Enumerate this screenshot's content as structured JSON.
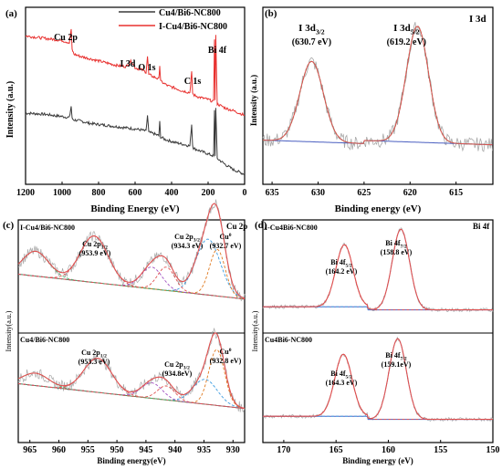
{
  "chart_data": [
    {
      "type": "line",
      "panel_label": "(a)",
      "xlabel": "Binding Energy (eV)",
      "ylabel": "Intensity (a.u.)",
      "xlim": [
        1200,
        0
      ],
      "x_reversed": true,
      "x_ticks": [
        "1200",
        "1000",
        "800",
        "600",
        "400",
        "200",
        "0"
      ],
      "legend_position": "top-right",
      "series": [
        {
          "name": "Cu4/Bi6-NC800",
          "color": "#3a3a3a",
          "x": [
            1200,
            1100,
            1000,
            960,
            950,
            945,
            935,
            900,
            850,
            800,
            750,
            700,
            650,
            600,
            560,
            540,
            532,
            525,
            500,
            470,
            465,
            460,
            440,
            420,
            380,
            350,
            300,
            290,
            285,
            280,
            250,
            200,
            170,
            165,
            162,
            158,
            150,
            100,
            60,
            30,
            0
          ],
          "y": [
            2.9,
            2.85,
            2.75,
            2.7,
            3.2,
            2.65,
            2.6,
            2.55,
            2.45,
            2.4,
            2.35,
            2.3,
            2.25,
            2.2,
            2.15,
            2.1,
            2.8,
            2.05,
            2.0,
            1.9,
            2.5,
            1.85,
            1.75,
            1.7,
            1.6,
            1.55,
            1.45,
            2.4,
            1.5,
            1.35,
            1.25,
            1.1,
            1.0,
            3.0,
            1.0,
            3.1,
            0.9,
            0.6,
            0.4,
            0.3,
            0.2
          ]
        },
        {
          "name": "I-Cu4/Bi6-NC800",
          "color": "#e8312f",
          "x": [
            1200,
            1100,
            1000,
            960,
            950,
            945,
            935,
            900,
            850,
            800,
            750,
            700,
            650,
            620,
            600,
            560,
            540,
            532,
            525,
            500,
            470,
            465,
            460,
            440,
            420,
            380,
            350,
            300,
            290,
            285,
            280,
            250,
            200,
            170,
            165,
            162,
            158,
            150,
            100,
            60,
            30,
            0
          ],
          "y": [
            6.3,
            6.2,
            6.1,
            6.0,
            6.6,
            5.7,
            5.5,
            5.4,
            5.3,
            5.2,
            5.1,
            5.0,
            4.95,
            5.2,
            4.9,
            4.8,
            4.7,
            5.4,
            4.6,
            4.5,
            4.4,
            5.0,
            4.3,
            4.2,
            4.1,
            4.0,
            3.9,
            3.8,
            4.7,
            3.8,
            3.7,
            3.6,
            3.5,
            3.4,
            6.2,
            3.5,
            6.3,
            3.3,
            3.1,
            3.0,
            2.9,
            2.8
          ]
        }
      ],
      "annotations": [
        {
          "text": "Cu 2p",
          "x": 960
        },
        {
          "text": "I 3d",
          "x": 620
        },
        {
          "text": "O 1s",
          "x": 532
        },
        {
          "text": "C 1s",
          "x": 285
        },
        {
          "text": "Bi 4f",
          "x": 158
        }
      ]
    },
    {
      "type": "line",
      "panel_label": "(b)",
      "title": "I 3d",
      "xlabel": "Binding energy (eV)",
      "ylabel": "Intensity (a.u.)",
      "xlim": [
        636,
        611
      ],
      "x_reversed": true,
      "x_ticks": [
        "635",
        "630",
        "625",
        "620",
        "615"
      ],
      "peaks": [
        {
          "label": "I 3d3/2",
          "value_label": "(630.7 eV)",
          "center": 630.7,
          "height": 5.2,
          "width": 0.8
        },
        {
          "label": "I 3d5/2",
          "value_label": "(619.2 eV)",
          "center": 619.2,
          "height": 7.5,
          "width": 0.75
        }
      ],
      "series_colors": {
        "raw": "#a8a8a8",
        "fit": "#e05050",
        "component": "#4caf6a",
        "background": "#4a5fc0"
      }
    },
    {
      "type": "line",
      "panel_label": "(c)",
      "title": "Cu 2p",
      "xlabel": "Binding energy(eV)",
      "ylabel": "Intensity(a.u.)",
      "xlim": [
        967,
        928
      ],
      "x_reversed": true,
      "x_ticks": [
        "965",
        "960",
        "955",
        "950",
        "945",
        "940",
        "935",
        "930"
      ],
      "subplots": [
        {
          "label": "I-Cu4/Bi6-NC800",
          "peaks": [
            {
              "label": "Cu 2p1/2",
              "value_label": "(953.9 eV)",
              "center": 953.9,
              "height": 3.0,
              "width": 1.6
            },
            {
              "label": "Cu 2p3/2",
              "value_label": "(934.3 eV)",
              "center": 934.3,
              "height": 3.6,
              "width": 1.4
            },
            {
              "label": "Cu0",
              "value_label": "(932.7 eV)",
              "center": 932.7,
              "height": 3.0,
              "width": 0.9
            }
          ],
          "satellites": [
            {
              "center": 964,
              "height": 1.6,
              "width": 1.5
            },
            {
              "center": 944,
              "height": 1.4,
              "width": 1.2
            },
            {
              "center": 941.5,
              "height": 1.5,
              "width": 1.0
            }
          ]
        },
        {
          "label": "Cu4/Bi6-NC800",
          "peaks": [
            {
              "label": "Cu 2p1/2",
              "value_label": "(953.3 eV)",
              "center": 953.3,
              "height": 2.2,
              "width": 1.6
            },
            {
              "label": "Cu 2p3/2",
              "value_label": "(934.8eV)",
              "center": 934.8,
              "height": 1.6,
              "width": 1.4
            },
            {
              "label": "Cu0",
              "value_label": "(932.8 eV)",
              "center": 932.8,
              "height": 3.6,
              "width": 0.9
            }
          ],
          "satellites": [
            {
              "center": 964,
              "height": 0.8,
              "width": 1.5
            },
            {
              "center": 944,
              "height": 1.0,
              "width": 1.2
            },
            {
              "center": 941.5,
              "height": 0.9,
              "width": 1.0
            }
          ]
        }
      ]
    },
    {
      "type": "line",
      "panel_label": "(d)",
      "title": "Bi 4f",
      "xlabel": "Binding energy (eV)",
      "ylabel": "Intensity(a.u.)",
      "xlim": [
        172,
        150
      ],
      "x_reversed": true,
      "x_ticks": [
        "170",
        "165",
        "160",
        "155",
        "150"
      ],
      "subplots": [
        {
          "label": "I-Cu4Bi6-NC800",
          "peaks": [
            {
              "label": "Bi 4f5/2",
              "value_label": "(164.2 eV)",
              "center": 164.2,
              "height": 4.0,
              "width": 0.55
            },
            {
              "label": "Bi 4f7/2",
              "value_label": "(158.8 eV)",
              "center": 158.8,
              "height": 5.2,
              "width": 0.55
            }
          ]
        },
        {
          "label": "Cu4Bi6-NC800",
          "peaks": [
            {
              "label": "Bi 4f5/2",
              "value_label": "(164.3 eV)",
              "center": 164.3,
              "height": 4.0,
              "width": 0.55
            },
            {
              "label": "Bi 4f7/2",
              "value_label": "(159.1eV)",
              "center": 159.1,
              "height": 5.2,
              "width": 0.55
            }
          ]
        }
      ]
    }
  ]
}
